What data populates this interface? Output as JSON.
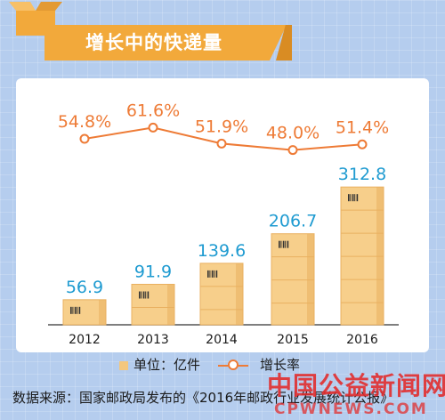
{
  "banner": {
    "title": "增长中的快递量"
  },
  "legend": {
    "bar_label": "单位：亿件",
    "line_label": "增长率"
  },
  "footer": {
    "source": "数据来源：国家邮政局发布的《2016年邮政行业发展统计公报》"
  },
  "watermark": {
    "cn": "中国公益新闻网",
    "en": "CPWNEWS.COM"
  },
  "colors": {
    "background": "#b5cdee",
    "banner": "#f2a93b",
    "bar_value_text": "#1f9bd1",
    "line": "#ee7b36",
    "box_light": "#f7cf8b",
    "box_dark": "#e9b060"
  },
  "chart_data": {
    "type": "bar",
    "categories": [
      "2012",
      "2013",
      "2014",
      "2015",
      "2016"
    ],
    "series": [
      {
        "name": "单位：亿件",
        "type": "bar",
        "values": [
          56.9,
          91.9,
          139.6,
          206.7,
          312.8
        ],
        "labels": [
          "56.9",
          "91.9",
          "139.6",
          "206.7",
          "312.8"
        ]
      },
      {
        "name": "增长率",
        "type": "line",
        "values": [
          54.8,
          61.6,
          51.9,
          48.0,
          51.4
        ],
        "labels": [
          "54.8%",
          "61.6%",
          "51.9%",
          "48.0%",
          "51.4%"
        ]
      }
    ]
  }
}
